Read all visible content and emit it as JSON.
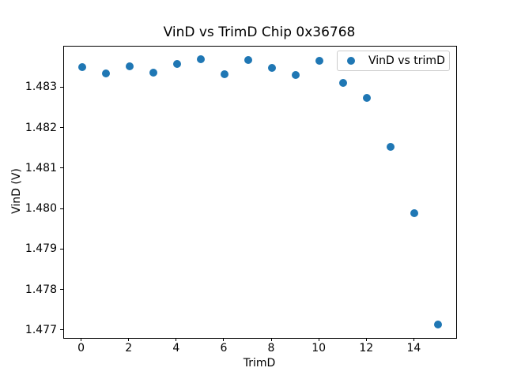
{
  "chart_data": {
    "type": "scatter",
    "title": "VinD vs TrimD Chip 0x36768",
    "xlabel": "TrimD",
    "ylabel": "VinD (V)",
    "legend_position": "upper right",
    "grid": false,
    "marker_color": "#1f77b4",
    "xlim": [
      -0.75,
      15.75
    ],
    "ylim": [
      1.47682,
      1.48402
    ],
    "xticks": [
      "0",
      "2",
      "4",
      "6",
      "8",
      "10",
      "12",
      "14"
    ],
    "yticks": [
      "1.477",
      "1.478",
      "1.479",
      "1.480",
      "1.481",
      "1.482",
      "1.483"
    ],
    "series": [
      {
        "name": "VinD vs trimD",
        "x": [
          0,
          1,
          2,
          3,
          4,
          5,
          6,
          7,
          8,
          9,
          10,
          11,
          12,
          13,
          14,
          15
        ],
        "y": [
          1.48351,
          1.48335,
          1.48353,
          1.48337,
          1.4836,
          1.4837,
          1.48333,
          1.48368,
          1.48349,
          1.48331,
          1.48366,
          1.48312,
          1.48275,
          1.48154,
          1.4799,
          1.47715
        ]
      }
    ]
  }
}
